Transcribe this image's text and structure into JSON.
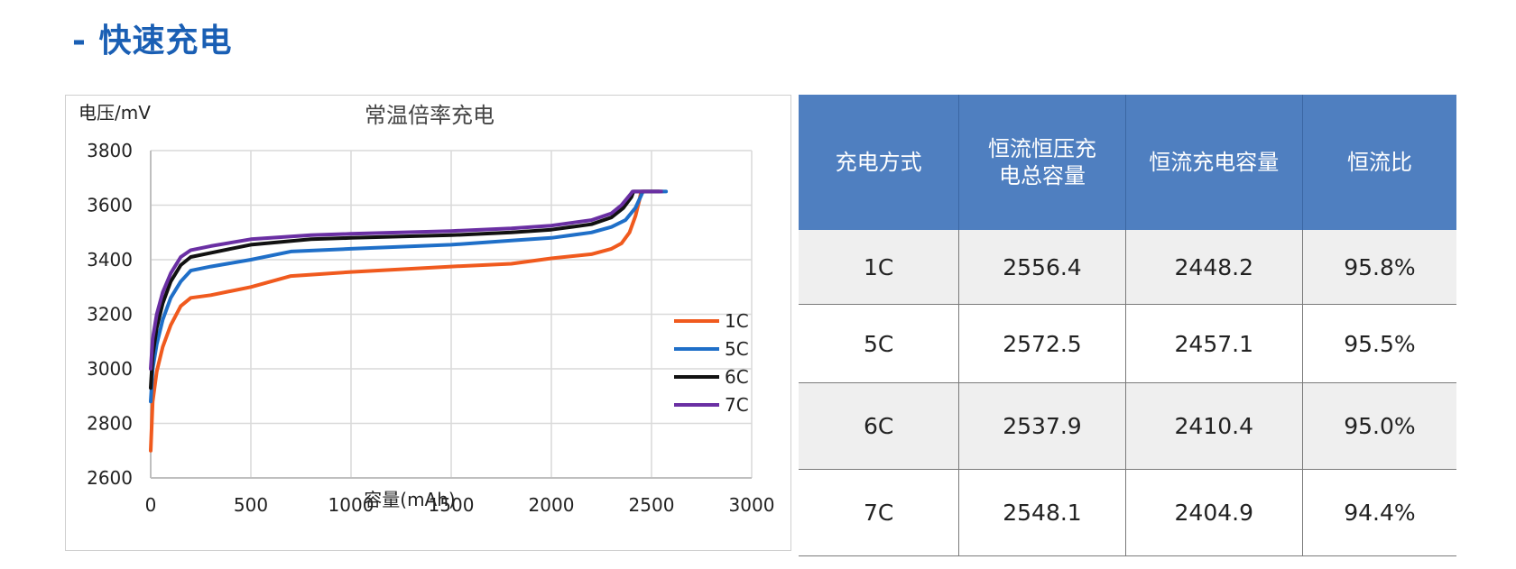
{
  "page": {
    "section_title": "- 快速充电"
  },
  "chart_data": {
    "type": "line",
    "title": "常温倍率充电",
    "ylabel": "电压/mV",
    "xlabel": "容量(mAh)",
    "xlim": [
      0,
      3000
    ],
    "ylim": [
      2600,
      3800
    ],
    "xticks": [
      0,
      500,
      1000,
      1500,
      2000,
      2500,
      3000
    ],
    "yticks": [
      2600,
      2800,
      3000,
      3200,
      3400,
      3600,
      3800
    ],
    "grid": true,
    "legend_position": "right",
    "colors": {
      "1C": "#f05a1e",
      "5C": "#1f6fc8",
      "6C": "#111111",
      "7C": "#6a2fa3"
    },
    "series": [
      {
        "name": "1C",
        "x": [
          0,
          10,
          30,
          60,
          100,
          150,
          200,
          300,
          500,
          700,
          1000,
          1500,
          1800,
          2000,
          2200,
          2300,
          2350,
          2390,
          2420,
          2440,
          2448,
          2470,
          2510,
          2556.4
        ],
        "y": [
          2700,
          2880,
          2990,
          3080,
          3160,
          3230,
          3260,
          3270,
          3300,
          3340,
          3355,
          3375,
          3385,
          3405,
          3420,
          3440,
          3460,
          3500,
          3560,
          3620,
          3650,
          3650,
          3650,
          3650
        ]
      },
      {
        "name": "5C",
        "x": [
          0,
          10,
          30,
          60,
          100,
          150,
          200,
          300,
          500,
          700,
          1000,
          1500,
          1800,
          2000,
          2200,
          2300,
          2370,
          2420,
          2445,
          2457,
          2490,
          2530,
          2572.5
        ],
        "y": [
          2880,
          3000,
          3090,
          3180,
          3260,
          3320,
          3360,
          3375,
          3400,
          3430,
          3440,
          3455,
          3470,
          3480,
          3500,
          3520,
          3545,
          3590,
          3630,
          3650,
          3650,
          3650,
          3650
        ]
      },
      {
        "name": "6C",
        "x": [
          0,
          10,
          30,
          60,
          100,
          150,
          200,
          300,
          500,
          800,
          1000,
          1500,
          1800,
          2000,
          2200,
          2300,
          2360,
          2400,
          2410,
          2450,
          2500,
          2537.9
        ],
        "y": [
          2930,
          3050,
          3150,
          3240,
          3320,
          3380,
          3410,
          3425,
          3455,
          3475,
          3480,
          3490,
          3500,
          3510,
          3530,
          3555,
          3590,
          3630,
          3650,
          3650,
          3650,
          3650
        ]
      },
      {
        "name": "7C",
        "x": [
          0,
          10,
          30,
          60,
          100,
          150,
          200,
          300,
          500,
          800,
          1000,
          1500,
          1800,
          2000,
          2200,
          2300,
          2350,
          2395,
          2405,
          2450,
          2500,
          2548.1
        ],
        "y": [
          3000,
          3110,
          3200,
          3280,
          3350,
          3410,
          3435,
          3450,
          3475,
          3490,
          3495,
          3505,
          3515,
          3525,
          3545,
          3570,
          3600,
          3640,
          3650,
          3650,
          3650,
          3650
        ]
      }
    ]
  },
  "table": {
    "headers": [
      "充电方式",
      "恒流恒压充电总容量",
      "恒流充电容量",
      "恒流比"
    ],
    "header_lines": [
      [
        "充电方式"
      ],
      [
        "恒流恒压充",
        "电总容量"
      ],
      [
        "恒流充电容量"
      ],
      [
        "恒流比"
      ]
    ],
    "rows": [
      [
        "1C",
        "2556.4",
        "2448.2",
        "95.8%"
      ],
      [
        "5C",
        "2572.5",
        "2457.1",
        "95.5%"
      ],
      [
        "6C",
        "2537.9",
        "2410.4",
        "95.0%"
      ],
      [
        "7C",
        "2548.1",
        "2404.9",
        "94.4%"
      ]
    ]
  }
}
